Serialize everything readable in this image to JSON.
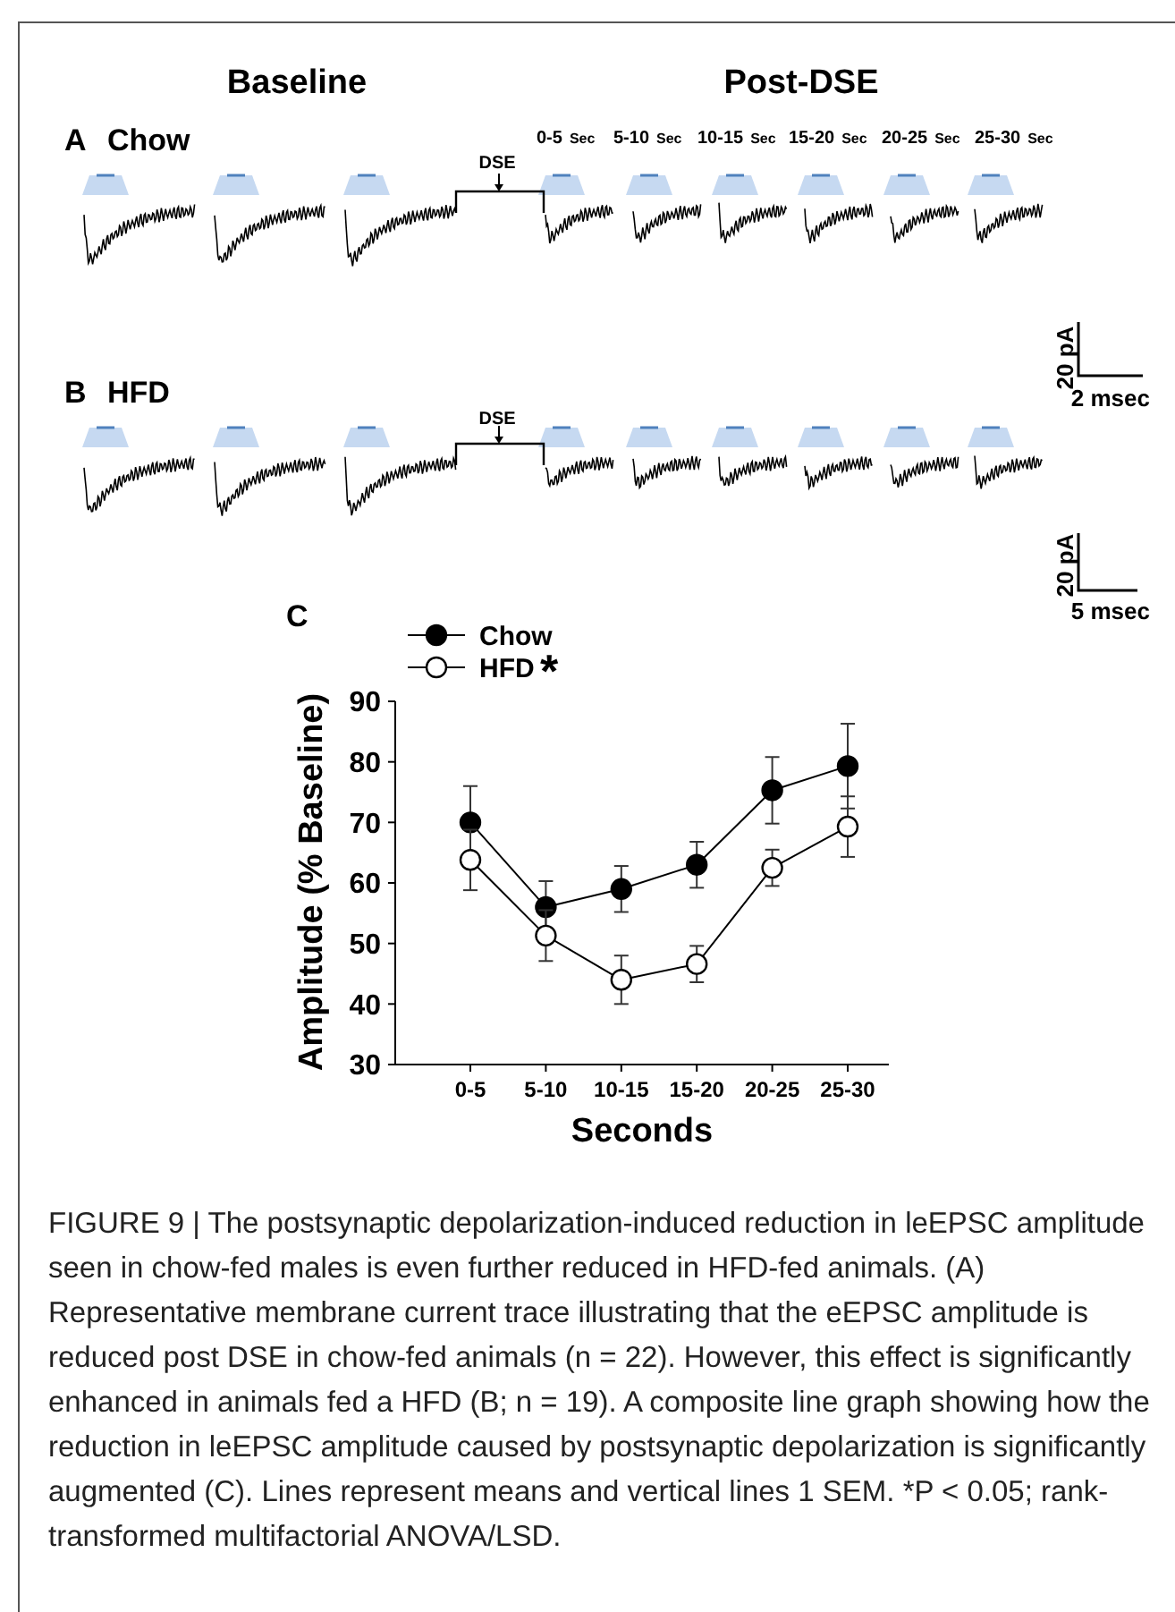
{
  "chart_data": {
    "type": "line",
    "xlabel": "Seconds",
    "ylabel": "Amplitude (% Baseline)",
    "categories": [
      "0-5",
      "5-10",
      "10-15",
      "15-20",
      "20-25",
      "25-30"
    ],
    "series": [
      {
        "name": "Chow",
        "color": "#000000",
        "values": [
          70,
          56,
          59,
          63,
          75.3,
          79.3
        ],
        "errors": [
          6,
          4.3,
          3.8,
          3.8,
          5.5,
          7
        ]
      },
      {
        "name": "HFD",
        "color": "#ffffff",
        "values": [
          63.8,
          51.3,
          44,
          46.6,
          62.5,
          69.3
        ],
        "errors": [
          5,
          4.2,
          4,
          3,
          3,
          5
        ]
      }
    ],
    "ylim": [
      30,
      90
    ],
    "yticks": [
      30,
      40,
      50,
      60,
      70,
      80,
      90
    ],
    "grid": false,
    "legend": "top left",
    "marker": "circle",
    "line_style": "solid",
    "annotations": [
      "Baseline",
      "Post-DSE",
      "A",
      "Chow",
      "0-5 Sec",
      "5-10 Sec",
      "10-15 Sec",
      "15-20 Sec",
      "20-25 Sec",
      "25-30 Sec",
      "DSE",
      "B",
      "HFD",
      "DSE",
      "20 pA",
      "2 msec",
      "20 pA",
      "5 msec",
      "C",
      "*",
      "FIGURE 9 | The postsynaptic depolarization-induced reduction in leEPSC amplitude seen in chow-fed males is even further reduced in HFD-fed animals. (A) Representative membrane current trace illustrating that the eEPSC amplitude is reduced post DSE in chow-fed animals (n = 22). However, this effect is significantly enhanced in animals fed a HFD (B; n = 19). A composite line graph showing how the reduction in leEPSC amplitude caused by postsynaptic depolarization is significantly augmented (C). Lines represent means and vertical lines 1 SEM. *P < 0.05; rank-transformed multifactorial ANOVA/LSD."
    ]
  }
}
